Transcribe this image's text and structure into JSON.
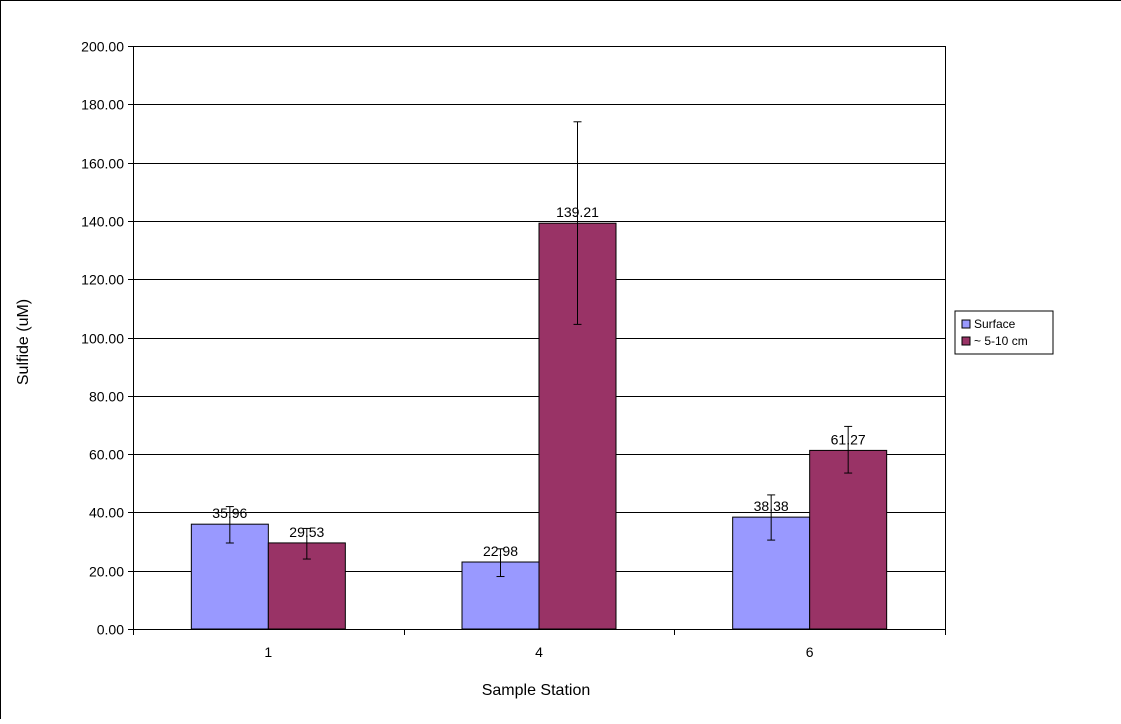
{
  "chart_data": {
    "type": "bar",
    "title": "",
    "xlabel": "Sample Station",
    "ylabel": "Sulfide (uM)",
    "categories": [
      "1",
      "4",
      "6"
    ],
    "ylim": [
      0,
      200
    ],
    "yticks": [
      0,
      20,
      40,
      60,
      80,
      100,
      120,
      140,
      160,
      180,
      200
    ],
    "ytick_labels": [
      "0.00",
      "20.00",
      "40.00",
      "60.00",
      "80.00",
      "100.00",
      "120.00",
      "140.00",
      "160.00",
      "180.00",
      "200.00"
    ],
    "grid": true,
    "legend_position": "right",
    "series": [
      {
        "name": "Surface",
        "color": "#9999ff",
        "values": [
          35.96,
          22.98,
          38.38
        ],
        "value_labels": [
          "35.96",
          "22.98",
          "38.38"
        ],
        "error_low": [
          29.5,
          18.0,
          30.5
        ],
        "error_high": [
          42.0,
          27.5,
          46.0
        ]
      },
      {
        "name": "~ 5-10 cm",
        "color": "#993366",
        "values": [
          29.53,
          139.21,
          61.27
        ],
        "value_labels": [
          "29.53",
          "139.21",
          "61.27"
        ],
        "error_low": [
          24.0,
          104.5,
          53.5
        ],
        "error_high": [
          34.5,
          174.0,
          69.5
        ]
      }
    ]
  }
}
